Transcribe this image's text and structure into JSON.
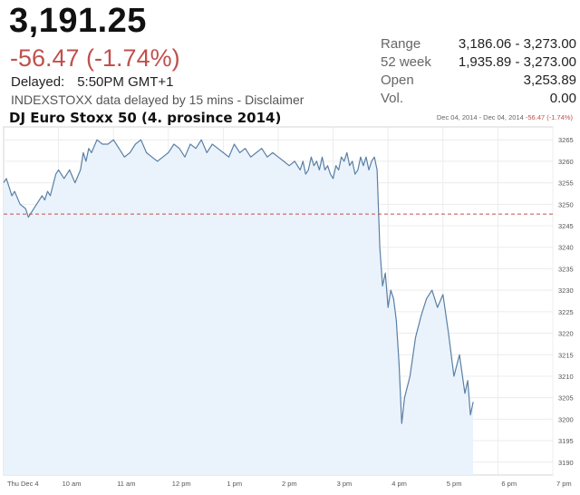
{
  "quote": {
    "price": "3,191.25",
    "change": "-56.47 (-1.74%)",
    "delayed_label": "Delayed:",
    "delayed_time": "5:50PM GMT+1",
    "disclaimer": "INDEXSTOXX data delayed by 15 mins - Disclaimer"
  },
  "stats": [
    {
      "label": "Range",
      "value": "3,186.06 - 3,273.00"
    },
    {
      "label": "52 week",
      "value": "1,935.89 - 3,273.00"
    },
    {
      "label": "Open",
      "value": "3,253.89"
    },
    {
      "label": "Vol.",
      "value": "0.00"
    }
  ],
  "colors": {
    "negative": "#c0504d",
    "line": "#5a7fa6",
    "area_fill": "#eaf3fb",
    "prev_close_line": "#c0504d"
  },
  "chart_data": {
    "type": "area",
    "title": "DJ Euro Stoxx 50 (4. prosince 2014)",
    "range_text": "Dec 04, 2014 - Dec 04, 2014",
    "range_change": "-56.47 (-1.74%)",
    "x_tick_labels": [
      "Thu Dec 4",
      "10 am",
      "11 am",
      "12 pm",
      "1 pm",
      "2 pm",
      "3 pm",
      "4 pm",
      "5 pm",
      "6 pm",
      "7 pm"
    ],
    "x_tick_hours": [
      9,
      10,
      11,
      12,
      13,
      14,
      15,
      16,
      17,
      18,
      19
    ],
    "y_tick_labels": [
      "3265",
      "3260",
      "3255",
      "3250",
      "3245",
      "3240",
      "3235",
      "3230",
      "3225",
      "3220",
      "3215",
      "3210",
      "3205",
      "3200",
      "3195",
      "3190"
    ],
    "y_ticks": [
      3265,
      3260,
      3255,
      3250,
      3245,
      3240,
      3235,
      3230,
      3225,
      3220,
      3215,
      3210,
      3205,
      3200,
      3195,
      3190
    ],
    "xlim": [
      9,
      19
    ],
    "ylim": [
      3187,
      3268
    ],
    "previous_close": 3247.72,
    "grid": true,
    "series": [
      {
        "x": [
          9.0,
          9.05,
          9.1,
          9.15,
          9.2,
          9.3,
          9.4,
          9.45,
          9.5,
          9.6,
          9.7,
          9.75,
          9.8,
          9.85,
          9.95,
          10.0,
          10.1,
          10.2,
          10.3,
          10.4,
          10.45,
          10.5,
          10.55,
          10.6,
          10.7,
          10.8,
          10.9,
          11.0,
          11.1,
          11.2,
          11.3,
          11.4,
          11.5,
          11.6,
          11.7,
          11.8,
          11.9,
          12.0,
          12.1,
          12.2,
          12.3,
          12.4,
          12.5,
          12.6,
          12.7,
          12.8,
          12.9,
          13.0,
          13.1,
          13.2,
          13.3,
          13.4,
          13.5,
          13.6,
          13.7,
          13.8,
          13.9,
          14.0,
          14.1,
          14.2,
          14.3,
          14.4,
          14.45,
          14.5,
          14.55,
          14.6,
          14.65,
          14.7,
          14.75,
          14.8,
          14.85,
          14.9,
          14.95,
          15.0,
          15.05,
          15.1,
          15.15,
          15.2,
          15.25,
          15.3,
          15.35,
          15.4,
          15.45,
          15.5,
          15.55,
          15.6,
          15.65,
          15.7,
          15.75,
          15.8,
          15.85,
          15.9,
          15.95,
          16.0,
          16.05,
          16.1,
          16.15,
          16.2,
          16.25,
          16.3,
          16.4,
          16.5,
          16.6,
          16.7,
          16.8,
          16.9,
          17.0,
          17.1,
          17.2,
          17.3,
          17.4,
          17.45,
          17.5,
          17.55
        ],
        "values": [
          3255,
          3256,
          3254,
          3252,
          3253,
          3250,
          3249,
          3247,
          3248,
          3250,
          3252,
          3251,
          3253,
          3252,
          3257,
          3258,
          3256,
          3258,
          3255,
          3258,
          3262,
          3260,
          3263,
          3262,
          3265,
          3264,
          3264,
          3265,
          3263,
          3261,
          3262,
          3264,
          3265,
          3262,
          3261,
          3260,
          3261,
          3262,
          3264,
          3263,
          3261,
          3264,
          3263,
          3265,
          3262,
          3264,
          3263,
          3262,
          3261,
          3264,
          3262,
          3263,
          3261,
          3262,
          3263,
          3261,
          3262,
          3261,
          3260,
          3259,
          3260,
          3258,
          3260,
          3257,
          3258,
          3261,
          3259,
          3260,
          3258,
          3261,
          3258,
          3259,
          3257,
          3256,
          3259,
          3258,
          3261,
          3260,
          3262,
          3259,
          3260,
          3257,
          3258,
          3261,
          3259,
          3261,
          3258,
          3260,
          3261,
          3258,
          3240,
          3231,
          3234,
          3226,
          3230,
          3228,
          3223,
          3213,
          3199,
          3205,
          3210,
          3219,
          3224,
          3228,
          3230,
          3226,
          3229,
          3220,
          3210,
          3215,
          3206,
          3209,
          3201,
          3204
        ],
        "_note": ""
      }
    ]
  }
}
